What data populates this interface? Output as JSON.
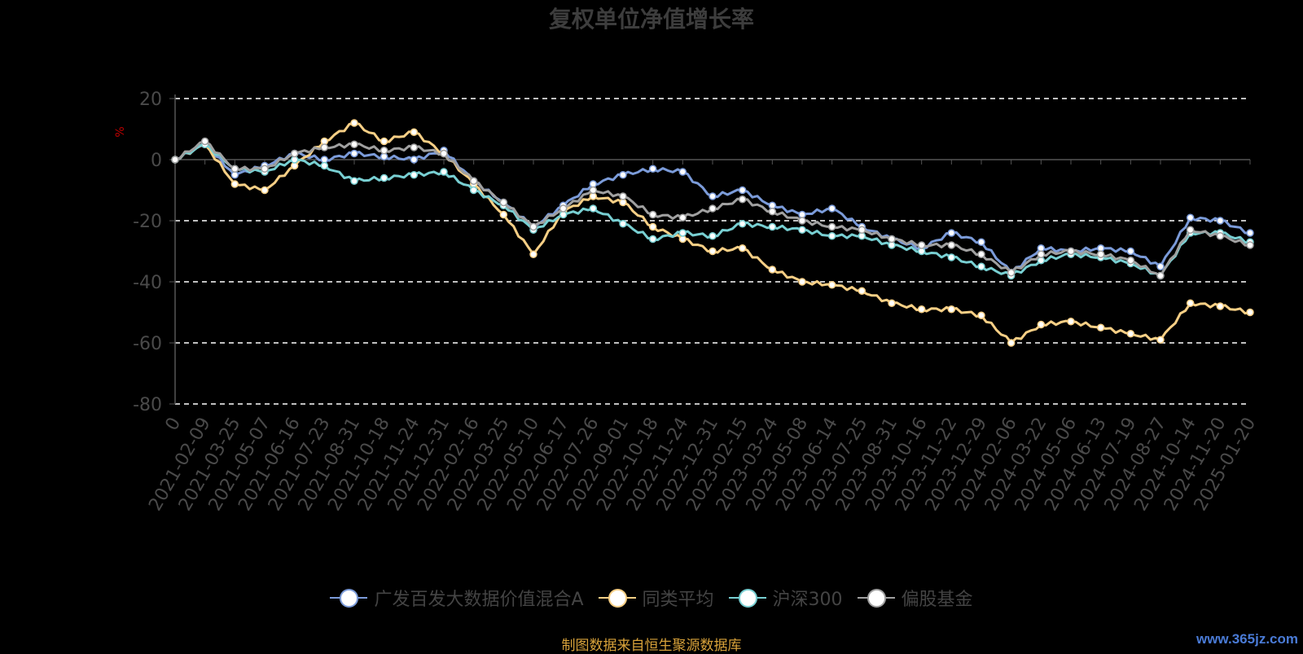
{
  "title": "复权单位净值增长率",
  "source": "制图数据来自恒生聚源数据库",
  "watermark": "www.365jz.com",
  "chart_data": {
    "type": "line",
    "title": "复权单位净值增长率",
    "ylabel": "%",
    "ylim": [
      -80,
      20
    ],
    "yticks": [
      20,
      0,
      -20,
      -40,
      -60,
      -80
    ],
    "grid": true,
    "legend_position": "bottom",
    "x": [
      "0",
      "2021-02-09",
      "2021-03-25",
      "2021-05-07",
      "2021-06-16",
      "2021-07-23",
      "2021-08-31",
      "2021-10-18",
      "2021-11-24",
      "2021-12-31",
      "2022-02-16",
      "2022-03-25",
      "2022-05-10",
      "2022-06-17",
      "2022-07-26",
      "2022-09-01",
      "2022-10-18",
      "2022-11-24",
      "2022-12-31",
      "2023-02-15",
      "2023-03-24",
      "2023-05-08",
      "2023-06-14",
      "2023-07-25",
      "2023-08-31",
      "2023-10-16",
      "2023-11-22",
      "2023-12-29",
      "2024-02-06",
      "2024-03-22",
      "2024-05-06",
      "2024-06-13",
      "2024-07-19",
      "2024-08-27",
      "2024-10-14",
      "2024-11-20",
      "2025-01-20"
    ],
    "series": [
      {
        "name": "广发百发大数据价值混合A",
        "color": "#7b9bd9",
        "values": [
          0,
          5,
          -5,
          -2,
          2,
          0,
          2,
          1,
          0,
          3,
          -7,
          -14,
          -22,
          -15,
          -8,
          -5,
          -3,
          -4,
          -12,
          -10,
          -15,
          -18,
          -16,
          -22,
          -26,
          -29,
          -24,
          -27,
          -37,
          -29,
          -30,
          -29,
          -30,
          -35,
          -19,
          -20,
          -24
        ]
      },
      {
        "name": "同类平均",
        "color": "#f7cf85",
        "values": [
          0,
          5,
          -8,
          -10,
          -2,
          6,
          12,
          6,
          9,
          2,
          -8,
          -18,
          -31,
          -17,
          -12,
          -14,
          -22,
          -26,
          -30,
          -29,
          -36,
          -40,
          -41,
          -43,
          -47,
          -49,
          -49,
          -51,
          -60,
          -54,
          -53,
          -55,
          -57,
          -59,
          -47,
          -48,
          -50
        ]
      },
      {
        "name": "沪深300",
        "color": "#78cfd2",
        "values": [
          0,
          5,
          -3,
          -4,
          0,
          -2,
          -7,
          -6,
          -5,
          -4,
          -10,
          -15,
          -23,
          -18,
          -16,
          -21,
          -26,
          -24,
          -25,
          -21,
          -22,
          -23,
          -25,
          -25,
          -28,
          -30,
          -32,
          -35,
          -38,
          -33,
          -31,
          -32,
          -34,
          -38,
          -24,
          -24,
          -27
        ]
      },
      {
        "name": "偏股基金",
        "color": "#a0a0a0",
        "values": [
          0,
          6,
          -3,
          -3,
          2,
          4,
          5,
          3,
          4,
          2,
          -7,
          -14,
          -22,
          -16,
          -10,
          -12,
          -18,
          -19,
          -16,
          -13,
          -17,
          -20,
          -22,
          -23,
          -26,
          -28,
          -28,
          -31,
          -37,
          -31,
          -30,
          -31,
          -33,
          -38,
          -23,
          -25,
          -28
        ]
      }
    ]
  }
}
